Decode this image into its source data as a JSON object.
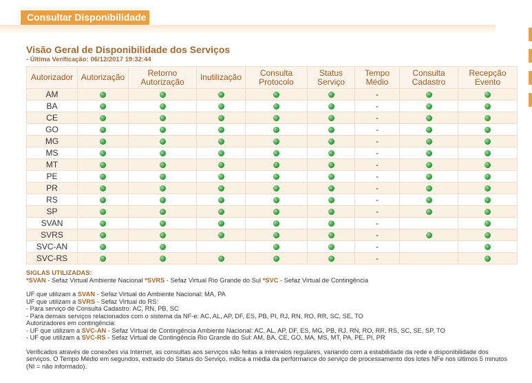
{
  "header": {
    "tab": "Consultar Disponibilidade"
  },
  "overview": {
    "title": "Visão Geral de Disponibilidade dos Serviços",
    "subtitle": "- Última Verificação: 06/12/2017 19:32:44"
  },
  "table": {
    "headers": [
      "Autorizador",
      "Autorização",
      "Retorno Autorização",
      "Inutilização",
      "Consulta Protocolo",
      "Status Serviço",
      "Tempo Médio",
      "Consulta Cadastro",
      "Recepção Evento"
    ],
    "rows": [
      {
        "autorizador": "AM",
        "tempo_medio": "-"
      },
      {
        "autorizador": "BA",
        "tempo_medio": "-"
      },
      {
        "autorizador": "CE",
        "tempo_medio": "-"
      },
      {
        "autorizador": "GO",
        "tempo_medio": "-"
      },
      {
        "autorizador": "MG",
        "tempo_medio": "-"
      },
      {
        "autorizador": "MS",
        "tempo_medio": "-"
      },
      {
        "autorizador": "MT",
        "tempo_medio": "-"
      },
      {
        "autorizador": "PE",
        "tempo_medio": "-"
      },
      {
        "autorizador": "PR",
        "tempo_medio": "-"
      },
      {
        "autorizador": "RS",
        "tempo_medio": "-"
      },
      {
        "autorizador": "SP",
        "tempo_medio": "-"
      },
      {
        "autorizador": "SVAN",
        "tempo_medio": "-"
      },
      {
        "autorizador": "SVRS",
        "tempo_medio": "-"
      },
      {
        "autorizador": "SVC-AN",
        "tempo_medio": "-"
      },
      {
        "autorizador": "SVC-RS",
        "tempo_medio": "-"
      }
    ]
  },
  "notes": {
    "paragraphs": [
      [
        [
          {
            "text": "SIGLAS UTILIZADAS:",
            "bold": true
          }
        ],
        [
          {
            "text": "*SVAN",
            "bold": true
          },
          " - Sefaz Virtual Ambiente Nacional ",
          {
            "text": "*SVRS",
            "bold": true
          },
          " - Sefaz Virtual Rio Grande do Sul ",
          {
            "text": "*SVC",
            "bold": true
          },
          " - Sefaz Virtual de Contingência"
        ]
      ],
      [
        [
          "UF que utilizam a ",
          {
            "text": "SVAN",
            "bold": true
          },
          " - Sefaz Virtual do Ambiente Nacional: MA, PA"
        ],
        [
          "UF que utilizam a ",
          {
            "text": "SVRS",
            "bold": true
          },
          " - Sefaz Virtual do RS:"
        ],
        [
          "- Para serviço de Consulta Cadastro: AC, RN, PB, SC"
        ],
        [
          "- Para demais serviços relacionados com o sistema da NF-e: AC, AL, AP, DF, ES, PB, PI, RJ, RN, RO, RR, SC, SE, TO"
        ],
        [
          "Autorizadores em contingência:"
        ],
        [
          "- UF que utilizam a ",
          {
            "text": "SVC-AN",
            "bold": true
          },
          " - Sefaz Virtual de Contingência Ambiente Nacional: AC, AL, AP, DF, ES, MG, PB, RJ, RN, RO, RR, RS, SC, SE, SP, TO"
        ],
        [
          "- UF que utilizam a ",
          {
            "text": "SVC-RS",
            "bold": true
          },
          " - Sefaz Virtual de Contingência Rio Grande do Sul: AM, BA, CE, GO, MA, MS, MT, PA, PE, PI, PR"
        ]
      ],
      [
        [
          "Verificados através de conexões via Internet, as consultas aos serviços são feitas a intervalos regulares, variando com a estabilidade da rede e disponibilidade dos serviços. O Tempo Médio em segundos, extraido do Status do Serviço, indica a média da performance do serviço de processamento dos lotes NFe nos últimos 5 minutos (NI = não informado)."
        ]
      ]
    ]
  }
}
